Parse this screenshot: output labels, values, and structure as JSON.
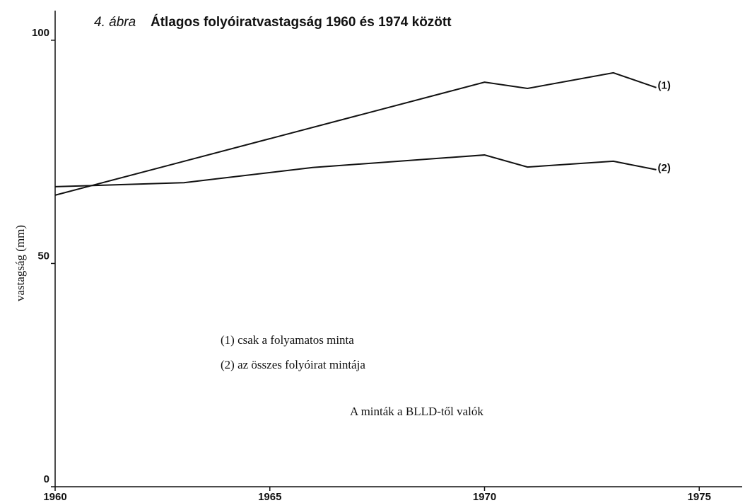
{
  "chart_data": {
    "type": "line",
    "figure_label": "4. ábra",
    "title": "Átlagos folyóiratvastagság 1960 és 1974 között",
    "y_label": "vastagság (mm)",
    "notes": [
      "(1) csak a folyamatos minta",
      "(2) az összes folyóirat mintája"
    ],
    "annotation": "A minták a BLLD-től valók",
    "series": [
      {
        "name": "(1)",
        "color": "#111111",
        "x": [
          1960,
          1970,
          1971,
          1973,
          1974
        ],
        "values": [
          65.3,
          90.6,
          89.2,
          92.7,
          89.4
        ]
      },
      {
        "name": "(2)",
        "color": "#111111",
        "x": [
          1960,
          1963,
          1966,
          1970,
          1971,
          1973,
          1974
        ],
        "values": [
          67.2,
          68.1,
          71.5,
          74.3,
          71.6,
          72.9,
          71.0
        ]
      }
    ],
    "xlim": [
      1960,
      1976
    ],
    "xticks": [
      1960,
      1965,
      1970,
      1975
    ],
    "ylim": [
      0,
      106
    ],
    "yticks": [
      0,
      50,
      100
    ],
    "grid": false
  }
}
